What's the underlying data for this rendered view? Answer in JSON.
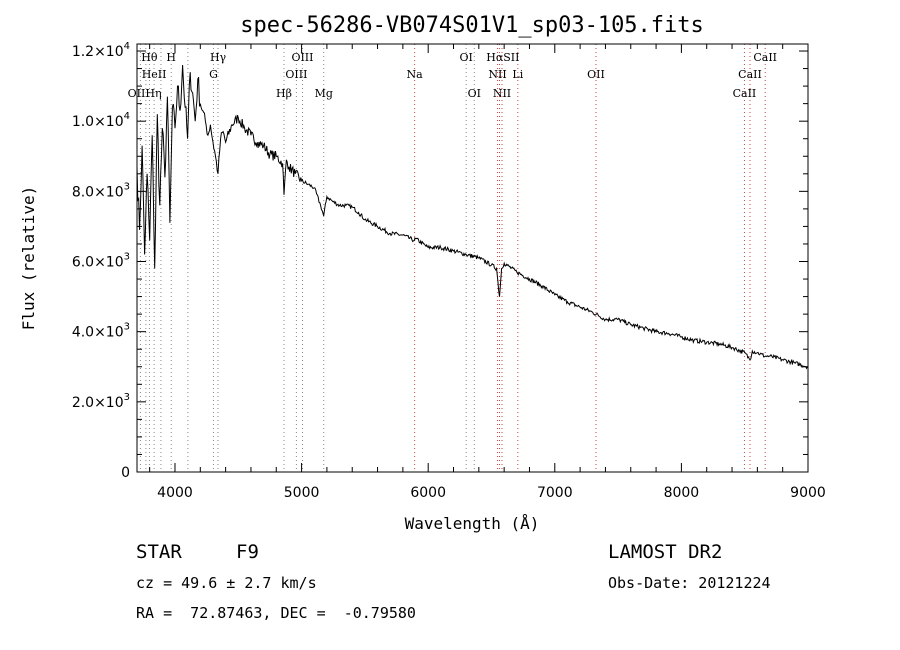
{
  "chart_data": {
    "type": "line",
    "title": "spec-56286-VB074S01V1_sp03-105.fits",
    "xlabel": "Wavelength (Å)",
    "ylabel": "Flux (relative)",
    "xlim": [
      3700,
      9000
    ],
    "ylim": [
      0,
      12200
    ],
    "xticks": [
      {
        "v": 4000,
        "label": "4000"
      },
      {
        "v": 5000,
        "label": "5000"
      },
      {
        "v": 6000,
        "label": "6000"
      },
      {
        "v": 7000,
        "label": "7000"
      },
      {
        "v": 8000,
        "label": "8000"
      },
      {
        "v": 9000,
        "label": "9000"
      }
    ],
    "yticks": [
      {
        "v": 0,
        "label": "0"
      },
      {
        "v": 2000,
        "mant": "2.0",
        "exp": "3"
      },
      {
        "v": 4000,
        "mant": "4.0",
        "exp": "3"
      },
      {
        "v": 6000,
        "mant": "6.0",
        "exp": "3"
      },
      {
        "v": 8000,
        "mant": "8.0",
        "exp": "3"
      },
      {
        "v": 10000,
        "mant": "1.0",
        "exp": "4"
      },
      {
        "v": 12000,
        "mant": "1.2",
        "exp": "4"
      }
    ],
    "series": [
      {
        "line_color": "#000000",
        "x": [
          3700,
          3720,
          3740,
          3760,
          3780,
          3800,
          3820,
          3840,
          3860,
          3880,
          3900,
          3920,
          3940,
          3960,
          3980,
          4000,
          4020,
          4040,
          4060,
          4080,
          4100,
          4120,
          4140,
          4160,
          4180,
          4200,
          4220,
          4240,
          4260,
          4280,
          4300,
          4320,
          4340,
          4360,
          4380,
          4400,
          4450,
          4500,
          4550,
          4600,
          4650,
          4700,
          4750,
          4800,
          4850,
          4861,
          4880,
          4900,
          4950,
          5000,
          5050,
          5100,
          5150,
          5175,
          5200,
          5250,
          5300,
          5350,
          5400,
          5450,
          5500,
          5600,
          5700,
          5800,
          5890,
          5900,
          6000,
          6100,
          6200,
          6300,
          6400,
          6500,
          6540,
          6563,
          6580,
          6600,
          6700,
          6800,
          6900,
          7000,
          7100,
          7200,
          7300,
          7400,
          7500,
          7600,
          7700,
          7800,
          7900,
          8000,
          8100,
          8200,
          8300,
          8400,
          8500,
          8542,
          8560,
          8600,
          8662,
          8700,
          8800,
          8900,
          9000
        ],
        "y": [
          8700,
          6900,
          9300,
          6200,
          8500,
          6600,
          9600,
          5800,
          10200,
          7600,
          9800,
          8400,
          10700,
          7100,
          10400,
          9800,
          11000,
          10300,
          11600,
          10400,
          9500,
          11400,
          10800,
          10000,
          11200,
          10500,
          10300,
          10000,
          9600,
          9900,
          9400,
          9000,
          8500,
          9500,
          9700,
          9400,
          9900,
          10100,
          9800,
          9600,
          9400,
          9300,
          9050,
          9000,
          8800,
          7900,
          8900,
          8700,
          8500,
          8300,
          8200,
          8100,
          7600,
          7300,
          7850,
          7700,
          7600,
          7600,
          7550,
          7400,
          7200,
          7000,
          6800,
          6750,
          6600,
          6650,
          6400,
          6400,
          6300,
          6200,
          6100,
          5900,
          5800,
          5000,
          5800,
          5950,
          5700,
          5500,
          5300,
          5050,
          4850,
          4700,
          4550,
          4350,
          4350,
          4200,
          4100,
          4000,
          3950,
          3850,
          3750,
          3700,
          3650,
          3550,
          3400,
          3200,
          3450,
          3400,
          3300,
          3300,
          3200,
          3100,
          3000
        ]
      }
    ],
    "spectral_lines": [
      {
        "label": "Hθ",
        "wl": 3798,
        "row": 0
      },
      {
        "label": "H",
        "wl": 3970,
        "row": 0
      },
      {
        "label": "Hγ",
        "wl": 4340,
        "row": 0
      },
      {
        "label": "OIII",
        "wl": 5007,
        "row": 0
      },
      {
        "label": "OI",
        "wl": 6300,
        "row": 0
      },
      {
        "label": "HαSII",
        "wl": 6590,
        "row": 0
      },
      {
        "label": "CaII",
        "wl": 8662,
        "row": 0
      },
      {
        "label": "HeII",
        "wl": 3835,
        "row": 1
      },
      {
        "label": "G",
        "wl": 4304,
        "row": 1
      },
      {
        "label": "OIII",
        "wl": 4959,
        "row": 1
      },
      {
        "label": "Na",
        "wl": 5893,
        "row": 1
      },
      {
        "label": "NII",
        "wl": 6548,
        "row": 1
      },
      {
        "label": "Li",
        "wl": 6708,
        "row": 1
      },
      {
        "label": "OII",
        "wl": 7325,
        "row": 1
      },
      {
        "label": "CaII",
        "wl": 8542,
        "row": 1
      },
      {
        "label": "OIIHη",
        "wl": 3760,
        "row": 2
      },
      {
        "label": "Hβ",
        "wl": 4861,
        "row": 2
      },
      {
        "label": "Mg",
        "wl": 5175,
        "row": 2
      },
      {
        "label": "OI",
        "wl": 6364,
        "row": 2
      },
      {
        "label": "NII",
        "wl": 6583,
        "row": 2
      },
      {
        "label": "CaII",
        "wl": 8498,
        "row": 2
      }
    ],
    "marker_lines": [
      {
        "wl": 3727,
        "color": "#888888"
      },
      {
        "wl": 3770,
        "color": "#888888"
      },
      {
        "wl": 3798,
        "color": "#888888"
      },
      {
        "wl": 3835,
        "color": "#888888"
      },
      {
        "wl": 3889,
        "color": "#888888"
      },
      {
        "wl": 3970,
        "color": "#888888"
      },
      {
        "wl": 4102,
        "color": "#888888"
      },
      {
        "wl": 4304,
        "color": "#888888"
      },
      {
        "wl": 4340,
        "color": "#888888"
      },
      {
        "wl": 4861,
        "color": "#888888"
      },
      {
        "wl": 4959,
        "color": "#888888"
      },
      {
        "wl": 5007,
        "color": "#888888"
      },
      {
        "wl": 5175,
        "color": "#888888"
      },
      {
        "wl": 5893,
        "color": "#cc4444"
      },
      {
        "wl": 6300,
        "color": "#888888"
      },
      {
        "wl": 6364,
        "color": "#888888"
      },
      {
        "wl": 6548,
        "color": "#cc4444"
      },
      {
        "wl": 6563,
        "color": "#cc4444"
      },
      {
        "wl": 6583,
        "color": "#cc4444"
      },
      {
        "wl": 6708,
        "color": "#cc4444"
      },
      {
        "wl": 7325,
        "color": "#cc4444"
      },
      {
        "wl": 8498,
        "color": "#cc4444"
      },
      {
        "wl": 8542,
        "color": "#cc4444"
      },
      {
        "wl": 8662,
        "color": "#cc4444"
      }
    ],
    "grid": false
  },
  "info": {
    "object_type": "STAR",
    "subclass": "F9",
    "survey": "LAMOST DR2",
    "redshift": "cz = 49.6 ± 2.7 km/s",
    "obs_date": "Obs-Date: 20121224",
    "coords": "RA =  72.87463, DEC =  -0.79580"
  }
}
